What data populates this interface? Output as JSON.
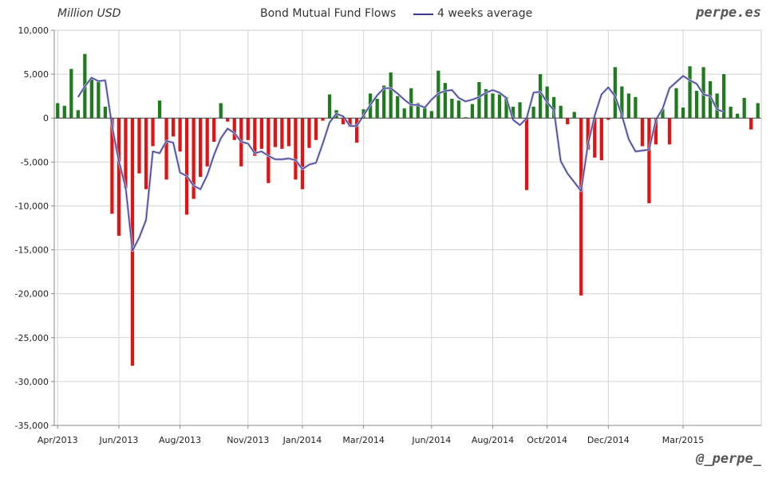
{
  "header": {
    "units": "Million USD",
    "title": "Bond Mutual Fund Flows",
    "legend_label": "4 weeks average",
    "brand_top": "perpe.es",
    "brand_bottom": "@_perpe_"
  },
  "colors": {
    "positive": "#1e7b1e",
    "negative": "#e01414",
    "average_line": "#3a3a8c",
    "grid": "#d4d4d4"
  },
  "chart_data": {
    "type": "bar",
    "title": "Bond Mutual Fund Flows",
    "ylabel": "Million USD",
    "ylim": [
      -35000,
      10000
    ],
    "ytick_values": [
      10000,
      5000,
      0,
      -5000,
      -10000,
      -15000,
      -20000,
      -25000,
      -30000,
      -35000
    ],
    "ytick_labels": [
      "10,000",
      "5,000",
      "0",
      "-5,000",
      "-10,000",
      "-15,000",
      "-20,000",
      "-25,000",
      "-30,000",
      "-35,000"
    ],
    "xtick_labels": [
      "Apr/2013",
      "Jun/2013",
      "Aug/2013",
      "Nov/2013",
      "Jan/2014",
      "Mar/2014",
      "Jun/2014",
      "Aug/2014",
      "Oct/2014",
      "Dec/2014",
      "Mar/2015"
    ],
    "xtick_week_index": [
      0,
      9,
      18,
      28,
      36,
      45,
      55,
      64,
      72,
      81,
      92
    ],
    "grid": true,
    "legend": "top",
    "series": [
      {
        "name": "",
        "kind": "bar",
        "values": [
          1700,
          1400,
          5600,
          900,
          7300,
          4500,
          4200,
          1300,
          -10900,
          -13400,
          -8000,
          -28200,
          -6300,
          -8100,
          -3200,
          2000,
          -7000,
          -2100,
          -3800,
          -11000,
          -9200,
          -6700,
          -5500,
          -2700,
          1700,
          -400,
          -2500,
          -5500,
          -2500,
          -4300,
          -3500,
          -7400,
          -3300,
          -3500,
          -3200,
          -7000,
          -8100,
          -3400,
          -2500,
          -300,
          2700,
          900,
          -700,
          -1000,
          -2800,
          1000,
          2800,
          2200,
          3700,
          5200,
          2500,
          1100,
          3400,
          1700,
          1300,
          800,
          5400,
          4000,
          2200,
          2000,
          100,
          1600,
          4100,
          3300,
          2800,
          2700,
          2400,
          1300,
          1800,
          -8200,
          1300,
          5000,
          3600,
          2400,
          1400,
          -700,
          700,
          -20200,
          -3600,
          -4500,
          -4800,
          -200,
          5800,
          3600,
          2800,
          2400,
          -3200,
          -9700,
          -3000,
          1000,
          -3000,
          3400,
          1200,
          5900,
          3100,
          5800,
          4200,
          2800,
          5000,
          1300,
          500,
          2300,
          -1300,
          1700
        ]
      },
      {
        "name": "4 weeks average",
        "kind": "line",
        "start_index": 3,
        "values": [
          2400,
          3600,
          4600,
          4200,
          4300,
          -900,
          -4900,
          -7900,
          -15100,
          -13600,
          -11600,
          -3800,
          -4000,
          -2600,
          -2800,
          -6200,
          -6600,
          -7700,
          -8100,
          -6500,
          -4200,
          -2300,
          -1200,
          -1700,
          -2700,
          -2900,
          -4000,
          -3800,
          -4300,
          -4700,
          -4700,
          -4600,
          -4800,
          -5800,
          -5300,
          -5100,
          -2900,
          -500,
          500,
          200,
          -900,
          -900,
          300,
          1500,
          2600,
          3400,
          3400,
          2800,
          2100,
          1500,
          1500,
          1200,
          2100,
          2800,
          3100,
          3200,
          2300,
          1900,
          2100,
          2400,
          2900,
          3200,
          2900,
          2300,
          -200,
          -800,
          0,
          2900,
          3000,
          1800,
          900,
          -4900,
          -6300,
          -7300,
          -8300,
          -3000,
          300,
          2700,
          3500,
          2500,
          300,
          -2400,
          -3800,
          -3700,
          -3600,
          -200,
          1100,
          3400,
          4100,
          4800,
          4300,
          3900,
          2700,
          2500,
          1000,
          700
        ]
      }
    ]
  }
}
